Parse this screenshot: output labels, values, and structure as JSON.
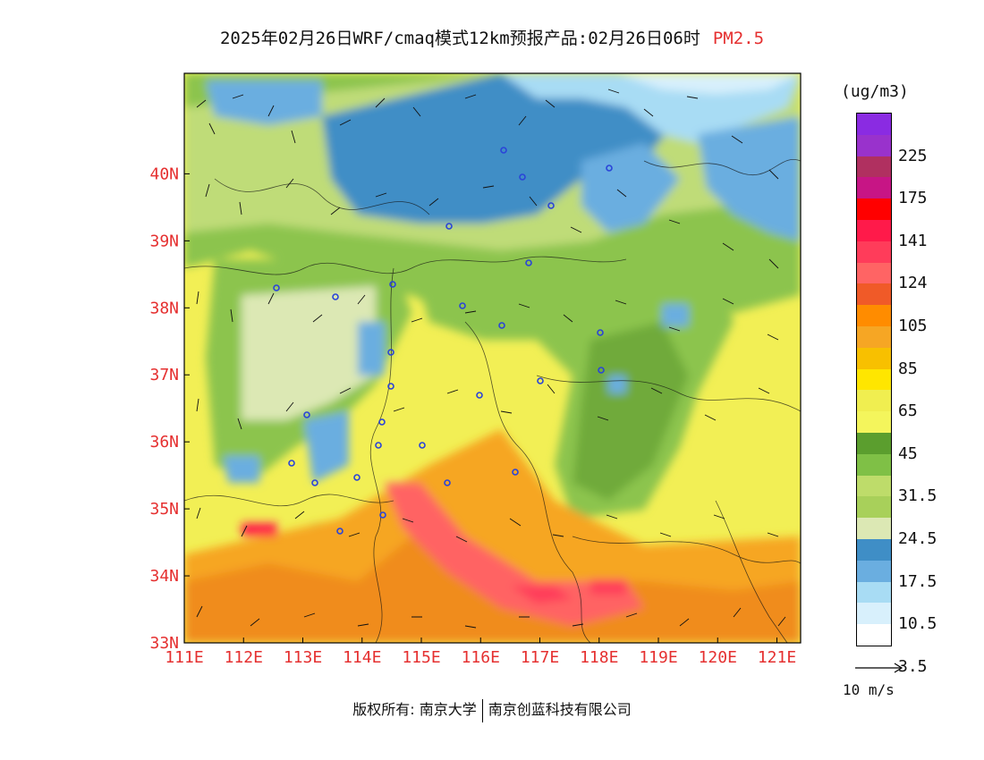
{
  "title": {
    "main": "2025年02月26日WRF/cmaq模式12km预报产品:02月26日06时",
    "pollutant": "PM2.5"
  },
  "map": {
    "lat_labels": [
      "40N",
      "39N",
      "38N",
      "37N",
      "36N",
      "35N",
      "34N",
      "33N"
    ],
    "lon_labels": [
      "111E",
      "112E",
      "113E",
      "114E",
      "115E",
      "116E",
      "117E",
      "118E",
      "119E",
      "120E",
      "121E"
    ],
    "lat_range": [
      33,
      41.5
    ],
    "lon_range": [
      111,
      121.4
    ]
  },
  "legend": {
    "unit": "(ug/m3)",
    "colors": [
      "#8a2be2",
      "#9932cc",
      "#b03060",
      "#c71585",
      "#ff0000",
      "#ff1a4a",
      "#ff3c5a",
      "#ff6464",
      "#f05a28",
      "#ff8c00",
      "#f6a624",
      "#f8c000",
      "#ffe600",
      "#f0ee50",
      "#f4f55c",
      "#5b9e2e",
      "#7fc046",
      "#bedc6a",
      "#a8d05a",
      "#dce8b4",
      "#3f8ec6",
      "#6aaee0",
      "#a8dcf4",
      "#d8f0fc",
      "#ffffff"
    ],
    "labels": [
      "225",
      "175",
      "141",
      "124",
      "105",
      "85",
      "65",
      "45",
      "31.5",
      "24.5",
      "17.5",
      "10.5",
      "3.5"
    ]
  },
  "wind_key": {
    "label": "10 m/s"
  },
  "credit": {
    "left": "版权所有: 南京大学",
    "right": "南京创蓝科技有限公司"
  }
}
